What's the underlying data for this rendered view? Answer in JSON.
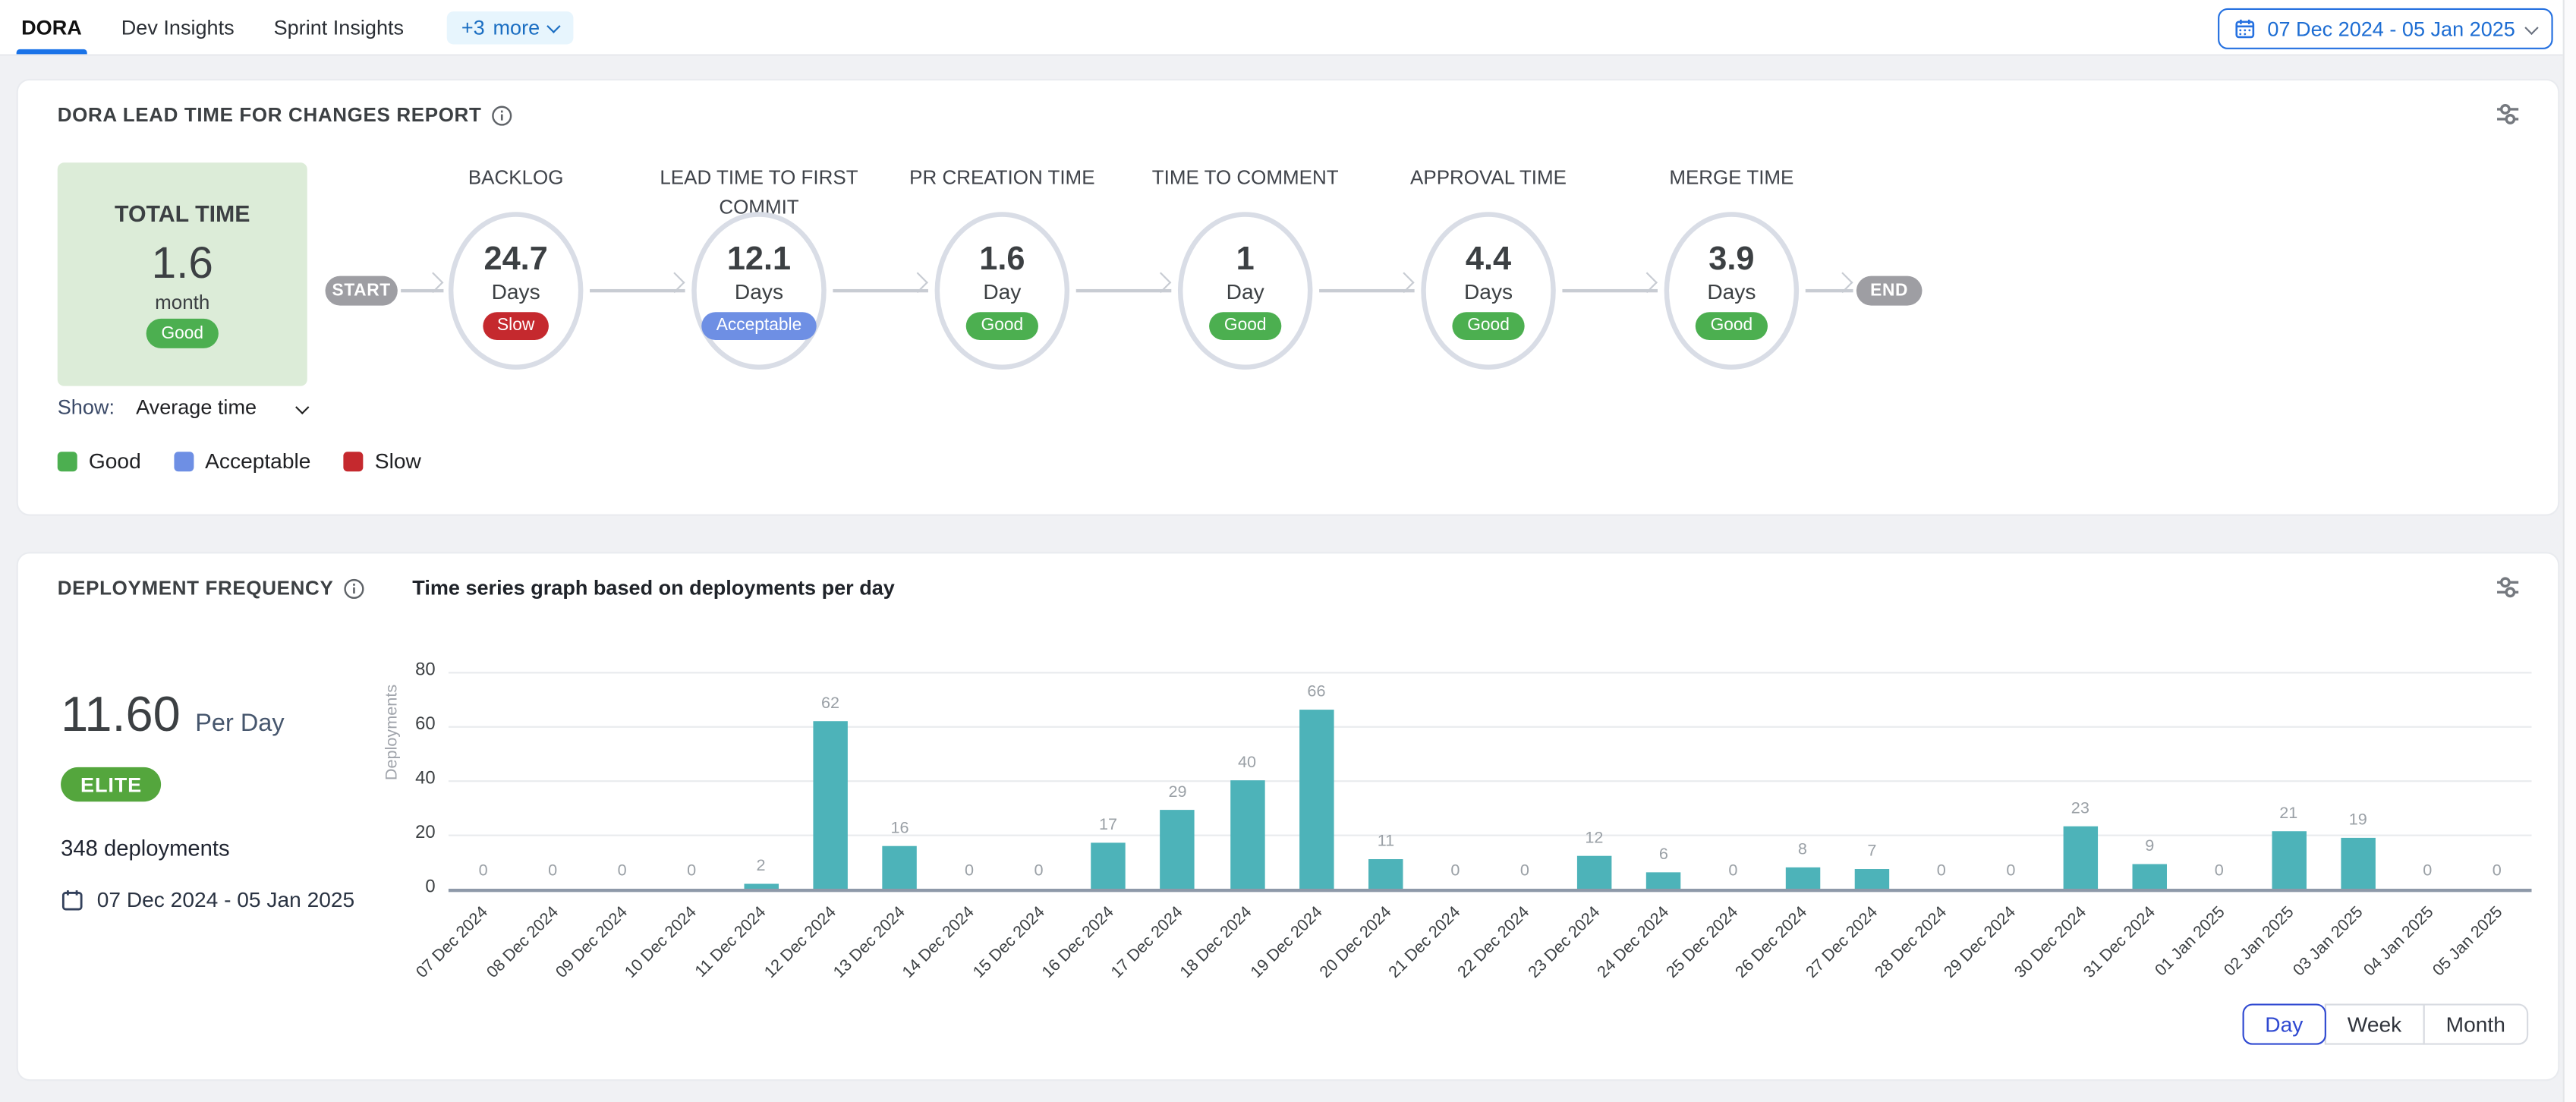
{
  "topbar": {
    "tabs": [
      {
        "label": "DORA",
        "active": true
      },
      {
        "label": "Dev Insights",
        "active": false
      },
      {
        "label": "Sprint Insights",
        "active": false
      }
    ],
    "more": {
      "prefix": "+3",
      "label": "more"
    },
    "date_picker_label": "07 Dec 2024 - 05 Jan 2025"
  },
  "lead_time_card": {
    "title": "DORA LEAD TIME FOR CHANGES REPORT",
    "total": {
      "label": "TOTAL TIME",
      "value": "1.6",
      "unit": "month",
      "status": "Good"
    },
    "show_label": "Show:",
    "show_value": "Average time",
    "start_label": "START",
    "end_label": "END",
    "status_colors": {
      "Good": "#4caf50",
      "Acceptable": "#6e8fe4",
      "Slow": "#c5292e"
    },
    "stages": [
      {
        "name": "BACKLOG",
        "value": "24.7",
        "unit": "Days",
        "status": "Slow"
      },
      {
        "name": "LEAD TIME TO FIRST COMMIT",
        "value": "12.1",
        "unit": "Days",
        "status": "Acceptable"
      },
      {
        "name": "PR CREATION TIME",
        "value": "1.6",
        "unit": "Day",
        "status": "Good"
      },
      {
        "name": "TIME TO COMMENT",
        "value": "1",
        "unit": "Day",
        "status": "Good"
      },
      {
        "name": "APPROVAL TIME",
        "value": "4.4",
        "unit": "Days",
        "status": "Good"
      },
      {
        "name": "MERGE TIME",
        "value": "3.9",
        "unit": "Days",
        "status": "Good"
      }
    ],
    "legend": [
      {
        "label": "Good",
        "color": "#4caf50"
      },
      {
        "label": "Acceptable",
        "color": "#6e8fe4"
      },
      {
        "label": "Slow",
        "color": "#c5292e"
      }
    ]
  },
  "deployment_card": {
    "title": "DEPLOYMENT FREQUENCY",
    "subtitle": "Time series graph based on deployments per day",
    "rate_value": "11.60",
    "rate_unit": "Per Day",
    "badge": "ELITE",
    "badge_color": "#54a63d",
    "deployments_total": "348 deployments",
    "date_range": "07 Dec 2024 - 05 Jan 2025",
    "granularity": {
      "options": [
        "Day",
        "Week",
        "Month"
      ],
      "active": "Day"
    }
  },
  "chart_data": {
    "type": "bar",
    "title": "Time series graph based on deployments per day",
    "xlabel": "",
    "ylabel": "Deployments",
    "categories": [
      "07 Dec 2024",
      "08 Dec 2024",
      "09 Dec 2024",
      "10 Dec 2024",
      "11 Dec 2024",
      "12 Dec 2024",
      "13 Dec 2024",
      "14 Dec 2024",
      "15 Dec 2024",
      "16 Dec 2024",
      "17 Dec 2024",
      "18 Dec 2024",
      "19 Dec 2024",
      "20 Dec 2024",
      "21 Dec 2024",
      "22 Dec 2024",
      "23 Dec 2024",
      "24 Dec 2024",
      "25 Dec 2024",
      "26 Dec 2024",
      "27 Dec 2024",
      "28 Dec 2024",
      "29 Dec 2024",
      "30 Dec 2024",
      "31 Dec 2024",
      "01 Jan 2025",
      "02 Jan 2025",
      "03 Jan 2025",
      "04 Jan 2025",
      "05 Jan 2025"
    ],
    "values": [
      0,
      0,
      0,
      0,
      2,
      62,
      16,
      0,
      0,
      17,
      29,
      40,
      66,
      11,
      0,
      0,
      12,
      6,
      0,
      8,
      7,
      0,
      0,
      23,
      9,
      0,
      21,
      19,
      0,
      0
    ],
    "ylim": [
      0,
      80
    ],
    "yticks": [
      0,
      20,
      40,
      60,
      80
    ],
    "bar_color": "#4db3b9",
    "grid": true,
    "legend_position": "none"
  }
}
